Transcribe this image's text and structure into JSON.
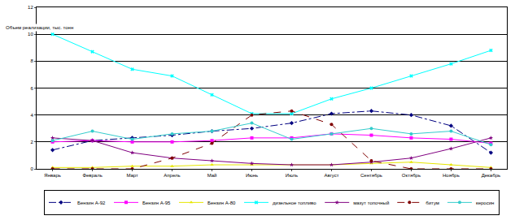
{
  "chart_data": {
    "type": "line",
    "y_label": "Объем реализации, тыс. тонн",
    "categories": [
      "Январь",
      "Февраль",
      "Март",
      "Апрель",
      "Май",
      "Июнь",
      "Июль",
      "Август",
      "Сентябрь",
      "Октябрь",
      "Ноябрь",
      "Декабрь"
    ],
    "series": [
      {
        "name": "Бензин А-92",
        "color": "#000080",
        "marker": "diamond",
        "line_style": "dashdot",
        "values": [
          1.4,
          2.1,
          2.3,
          2.5,
          2.8,
          3.0,
          3.4,
          4.1,
          4.3,
          4.0,
          3.2,
          1.2
        ]
      },
      {
        "name": "Бензин А-95",
        "color": "#ff00ff",
        "marker": "square",
        "line_style": "solid",
        "values": [
          2.0,
          2.1,
          2.0,
          2.0,
          2.1,
          2.3,
          2.3,
          2.6,
          2.5,
          2.3,
          2.2,
          1.9
        ]
      },
      {
        "name": "Бензин А-80",
        "color": "#e6e600",
        "marker": "triangle-up",
        "line_style": "solid",
        "values": [
          0.1,
          0.1,
          0.2,
          0.2,
          0.3,
          0.3,
          0.3,
          0.3,
          0.4,
          0.5,
          0.3,
          0.1
        ]
      },
      {
        "name": "дизельное топливо",
        "color": "#00ffff",
        "marker": "x",
        "line_style": "solid",
        "values": [
          10.0,
          8.7,
          7.4,
          6.9,
          5.5,
          4.1,
          4.1,
          5.2,
          6.0,
          6.9,
          7.8,
          8.8
        ]
      },
      {
        "name": "мазут топочный",
        "color": "#800080",
        "marker": "star",
        "line_style": "solid",
        "values": [
          2.3,
          2.1,
          1.2,
          0.8,
          0.6,
          0.4,
          0.3,
          0.3,
          0.5,
          0.8,
          1.5,
          2.3
        ]
      },
      {
        "name": "битум",
        "color": "#800000",
        "marker": "circle",
        "line_style": "dash",
        "values": [
          0,
          0,
          0,
          0.8,
          1.9,
          4.0,
          4.3,
          3.3,
          0.6,
          0,
          0,
          0
        ]
      },
      {
        "name": "керосин",
        "color": "#33cccc",
        "marker": "circle",
        "line_style": "solid",
        "values": [
          2.1,
          2.8,
          2.2,
          2.6,
          2.8,
          3.4,
          2.2,
          2.6,
          3.0,
          2.6,
          2.8,
          1.8
        ]
      }
    ],
    "ylim": [
      0,
      12
    ],
    "yticks": [
      0,
      2,
      4,
      6,
      8,
      10,
      12
    ],
    "grid": true,
    "legend": "bottom"
  }
}
